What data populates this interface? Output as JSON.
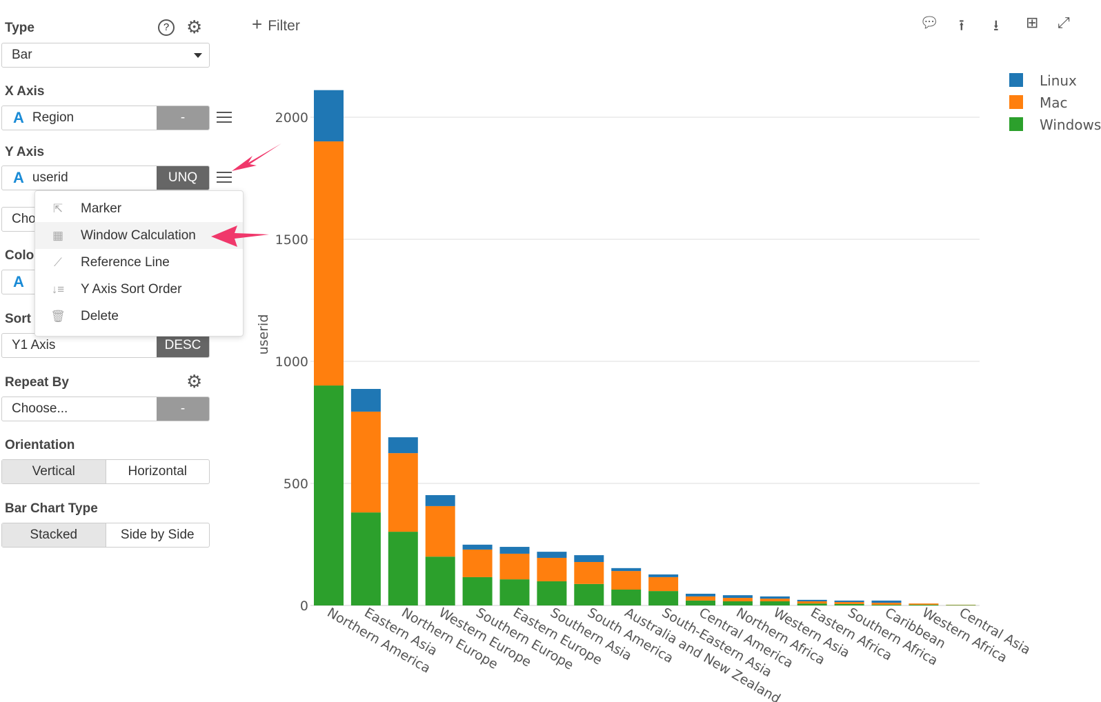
{
  "sidebar": {
    "type": {
      "label": "Type",
      "value": "Bar"
    },
    "x_axis": {
      "label": "X Axis",
      "value": "Region",
      "button": "-"
    },
    "y_axis": {
      "label": "Y Axis",
      "value": "userid",
      "button": "UNQ"
    },
    "choose_partial": "Cho",
    "color_partial": "Colo",
    "sort": {
      "label": "Sort",
      "value": "Y1 Axis",
      "button": "DESC"
    },
    "repeat_by": {
      "label": "Repeat By",
      "value": "Choose...",
      "button": "-"
    },
    "orientation": {
      "label": "Orientation",
      "options": [
        "Vertical",
        "Horizontal"
      ],
      "selected": "Vertical"
    },
    "bar_chart_type": {
      "label": "Bar Chart Type",
      "options": [
        "Stacked",
        "Side by Side"
      ],
      "selected": "Stacked"
    }
  },
  "menu": {
    "items": [
      {
        "label": "Marker",
        "icon": "cursor-icon"
      },
      {
        "label": "Window Calculation",
        "icon": "table-icon"
      },
      {
        "label": "Reference Line",
        "icon": "line-chart-icon"
      },
      {
        "label": "Y Axis Sort Order",
        "icon": "sort-icon"
      },
      {
        "label": "Delete",
        "icon": "trash-icon"
      }
    ],
    "highlighted": "Window Calculation"
  },
  "toolbar": {
    "filter": "Filter"
  },
  "colors": {
    "Linux": "#1f77b4",
    "Mac": "#ff7f0e",
    "Windows": "#2ca02c",
    "arrow": "#f0386b"
  },
  "chart_data": {
    "type": "bar",
    "stacked": true,
    "xlabel": "",
    "ylabel": "userid",
    "ylim": [
      0,
      2110
    ],
    "yticks": [
      0,
      500,
      1000,
      1500,
      2000
    ],
    "legend": "top-right",
    "categories": [
      "Northern America",
      "Eastern Asia",
      "Northern Europe",
      "Western Europe",
      "Southern Europe",
      "Eastern Europe",
      "Southern Asia",
      "South America",
      "Australia and New Zealand",
      "South-Eastern Asia",
      "Central America",
      "Northern Africa",
      "Western Asia",
      "Eastern Africa",
      "Southern Africa",
      "Caribbean",
      "Western Africa",
      "Central Asia"
    ],
    "series": [
      {
        "name": "Windows",
        "values": [
          901,
          381,
          302,
          200,
          116,
          107,
          99,
          88,
          65,
          59,
          20,
          17,
          17,
          8,
          6,
          3,
          3,
          2
        ]
      },
      {
        "name": "Mac",
        "values": [
          1000,
          413,
          322,
          207,
          113,
          105,
          96,
          90,
          76,
          57,
          17,
          14,
          11,
          9,
          8,
          8,
          5,
          1
        ]
      },
      {
        "name": "Linux",
        "values": [
          210,
          93,
          65,
          45,
          20,
          28,
          25,
          28,
          12,
          11,
          11,
          11,
          9,
          6,
          6,
          9,
          0,
          0
        ]
      }
    ]
  }
}
